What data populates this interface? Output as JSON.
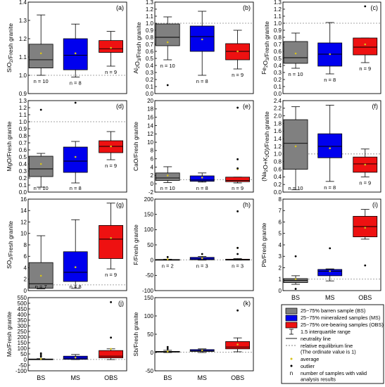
{
  "categories": [
    "BS",
    "MS",
    "OBS"
  ],
  "colors": {
    "BS": "#808080",
    "MS": "#0000ee",
    "OBS": "#ee1111",
    "average": "#d6c21a",
    "refline": "#888888"
  },
  "chart_data": [
    {
      "type": "box",
      "panel": "(a)",
      "ylabel_main": "SiO",
      "ylabel_sub": "2",
      "ylabel_rest": "/Fresh granite",
      "ylim": [
        0.9,
        1.4
      ],
      "yticks": [
        "0.9",
        "1.0",
        "1.1",
        "1.2",
        "1.3",
        "1.4"
      ],
      "ref": 1.0,
      "boxes": [
        {
          "cat": "BS",
          "whisker_low": 1.0,
          "q1": 1.04,
          "median": 1.085,
          "q3": 1.17,
          "whisker_high": 1.33,
          "mean": 1.12,
          "outliers": [],
          "n_label": "n = 10"
        },
        {
          "cat": "MS",
          "whisker_low": 0.99,
          "q1": 1.03,
          "median": 1.11,
          "q3": 1.2,
          "whisker_high": 1.28,
          "mean": 1.12,
          "outliers": [],
          "n_label": "n = 8"
        },
        {
          "cat": "OBS",
          "whisker_low": 1.05,
          "q1": 1.125,
          "median": 1.145,
          "q3": 1.19,
          "whisker_high": 1.24,
          "mean": 1.15,
          "outliers": [],
          "n_label": "n = 9"
        }
      ]
    },
    {
      "type": "box",
      "panel": "(b)",
      "ylabel_main": "Al",
      "ylabel_sub": "2",
      "ylabel_mid": "O",
      "ylabel_sub2": "3",
      "ylabel_rest": "/Fresh granite",
      "ylim": [
        0.0,
        1.3
      ],
      "yticks": [
        "0.0",
        "0.1",
        "0.2",
        "0.3",
        "0.4",
        "0.5",
        "0.6",
        "0.7",
        "0.8",
        "0.9",
        "1.0",
        "1.1",
        "1.2",
        "1.3"
      ],
      "ref": 1.0,
      "boxes": [
        {
          "cat": "BS",
          "whisker_low": 0.48,
          "q1": 0.68,
          "median": 0.8,
          "q3": 0.99,
          "whisker_high": 1.09,
          "mean": 0.73,
          "outliers": [
            0.12
          ],
          "n_label": "n = 10"
        },
        {
          "cat": "MS",
          "whisker_low": 0.26,
          "q1": 0.6,
          "median": 0.81,
          "q3": 0.96,
          "whisker_high": 1.17,
          "mean": 0.77,
          "outliers": [],
          "n_label": "n = 8"
        },
        {
          "cat": "OBS",
          "whisker_low": 0.35,
          "q1": 0.48,
          "median": 0.6,
          "q3": 0.71,
          "whisker_high": 0.9,
          "mean": 0.6,
          "outliers": [],
          "n_label": "n = 9"
        }
      ]
    },
    {
      "type": "box",
      "panel": "(c)",
      "ylabel_main": "Fe",
      "ylabel_sub": "2",
      "ylabel_mid": "O",
      "ylabel_sub2": "3",
      "ylabel_rest": "/Fresh granite",
      "ylim": [
        0.0,
        1.3
      ],
      "yticks": [
        "0.0",
        "0.1",
        "0.2",
        "0.3",
        "0.4",
        "0.5",
        "0.6",
        "0.7",
        "0.8",
        "0.9",
        "1.0",
        "1.1",
        "1.2",
        "1.3"
      ],
      "ref": 1.0,
      "boxes": [
        {
          "cat": "BS",
          "whisker_low": 0.36,
          "q1": 0.43,
          "median": 0.51,
          "q3": 0.74,
          "whisker_high": 0.86,
          "mean": 0.57,
          "outliers": [],
          "n_label": "n = 10"
        },
        {
          "cat": "MS",
          "whisker_low": 0.28,
          "q1": 0.39,
          "median": 0.56,
          "q3": 0.72,
          "whisker_high": 1.01,
          "mean": 0.56,
          "outliers": [],
          "n_label": "n = 8"
        },
        {
          "cat": "OBS",
          "whisker_low": 0.44,
          "q1": 0.55,
          "median": 0.66,
          "q3": 0.79,
          "whisker_high": 0.79,
          "mean": 0.7,
          "outliers": [
            1.24
          ],
          "n_label": "n = 9"
        }
      ]
    },
    {
      "type": "box",
      "panel": "(d)",
      "ylabel_main": "MgO",
      "ylabel_rest": "/Fresh granite",
      "ylim": [
        0.0,
        1.3
      ],
      "yticks": [
        "0.0",
        "0.1",
        "0.2",
        "0.3",
        "0.4",
        "0.5",
        "0.6",
        "0.7",
        "0.8",
        "0.9",
        "1.0",
        "1.1",
        "1.2",
        "1.3"
      ],
      "ref": 1.0,
      "boxes": [
        {
          "cat": "BS",
          "whisker_low": 0.07,
          "q1": 0.22,
          "median": 0.33,
          "q3": 0.51,
          "whisker_high": 0.55,
          "mean": 0.4,
          "outliers": [
            1.17
          ],
          "n_label": "n = 10"
        },
        {
          "cat": "MS",
          "whisker_low": 0.13,
          "q1": 0.28,
          "median": 0.44,
          "q3": 0.64,
          "whisker_high": 0.72,
          "mean": 0.5,
          "outliers": [
            1.27
          ],
          "n_label": "n = 8"
        },
        {
          "cat": "OBS",
          "whisker_low": 0.46,
          "q1": 0.56,
          "median": 0.65,
          "q3": 0.73,
          "whisker_high": 0.86,
          "mean": 0.65,
          "outliers": [],
          "n_label": "n = 9"
        }
      ]
    },
    {
      "type": "box",
      "panel": "(e)",
      "ylabel_main": "CaO",
      "ylabel_rest": "/Fresh granite",
      "ylim": [
        -2,
        20
      ],
      "yticks": [
        "-2",
        "0",
        "2",
        "4",
        "6",
        "8",
        "10",
        "12",
        "14",
        "16",
        "18",
        "20"
      ],
      "ref": 1.0,
      "boxes": [
        {
          "cat": "BS",
          "whisker_low": 0.3,
          "q1": 0.8,
          "median": 1.4,
          "q3": 2.6,
          "whisker_high": 4.1,
          "mean": 2.0,
          "outliers": [],
          "n_label": "n = 10"
        },
        {
          "cat": "MS",
          "whisker_low": 0.4,
          "q1": 0.6,
          "median": 0.9,
          "q3": 1.9,
          "whisker_high": 2.6,
          "mean": 1.5,
          "outliers": [],
          "n_label": "n = 8"
        },
        {
          "cat": "OBS",
          "whisker_low": 0.2,
          "q1": 0.5,
          "median": 0.8,
          "q3": 1.6,
          "whisker_high": 1.6,
          "mean": 3.5,
          "outliers": [
            18.3,
            5.9,
            3.7
          ],
          "n_label": "n = 9"
        }
      ]
    },
    {
      "type": "box",
      "panel": "(f)",
      "ylabel_main": "(Na",
      "ylabel_sub": "2",
      "ylabel_mid": "O+K",
      "ylabel_sub2": "2",
      "ylabel_rest": "O)/Fresh granite",
      "ylim": [
        0.0,
        2.4
      ],
      "yticks": [
        "0.0",
        "0.2",
        "0.4",
        "0.6",
        "0.8",
        "1.0",
        "1.2",
        "1.4",
        "1.6",
        "1.8",
        "2.0",
        "2.2",
        "2.4"
      ],
      "ref": 1.0,
      "boxes": [
        {
          "cat": "BS",
          "whisker_low": 0.06,
          "q1": 0.6,
          "median": 1.28,
          "q3": 1.9,
          "whisker_high": 2.24,
          "mean": 1.2,
          "outliers": [],
          "n_label": "n = 10"
        },
        {
          "cat": "MS",
          "whisker_low": 0.28,
          "q1": 0.9,
          "median": 1.2,
          "q3": 1.53,
          "whisker_high": 2.28,
          "mean": 1.15,
          "outliers": [],
          "n_label": "n = 8"
        },
        {
          "cat": "OBS",
          "whisker_low": 0.4,
          "q1": 0.52,
          "median": 0.74,
          "q3": 0.92,
          "whisker_high": 1.13,
          "mean": 0.72,
          "outliers": [],
          "n_label": "n = 9"
        }
      ]
    },
    {
      "type": "box",
      "panel": "(g)",
      "ylabel_main": "SO",
      "ylabel_sub": "3",
      "ylabel_rest": "/Fresh granite",
      "ylim": [
        0,
        16
      ],
      "yticks": [
        "0",
        "2",
        "4",
        "6",
        "8",
        "10",
        "12",
        "14",
        "16"
      ],
      "ref": 1.0,
      "boxes": [
        {
          "cat": "BS",
          "whisker_low": 0.3,
          "q1": 0.4,
          "median": 1.2,
          "q3": 4.9,
          "whisker_high": 9.6,
          "mean": 2.6,
          "outliers": [],
          "n_label": "n = 7"
        },
        {
          "cat": "MS",
          "whisker_low": 0.4,
          "q1": 1.6,
          "median": 3.2,
          "q3": 6.8,
          "whisker_high": 12.4,
          "mean": 4.1,
          "outliers": [],
          "n_label": "n = 8"
        },
        {
          "cat": "OBS",
          "whisker_low": 3.8,
          "q1": 5.6,
          "median": 9.0,
          "q3": 11.4,
          "whisker_high": 15.3,
          "mean": 9.2,
          "outliers": [],
          "n_label": "n = 9"
        }
      ]
    },
    {
      "type": "box",
      "panel": "(h)",
      "ylabel_main": "F",
      "ylabel_rest": "/Fresh granite",
      "ylim": [
        -100,
        200
      ],
      "yticks": [
        "-100",
        "-50",
        "0",
        "50",
        "100",
        "150",
        "200"
      ],
      "ref": 1.0,
      "boxes": [
        {
          "cat": "BS",
          "whisker_low": 0,
          "q1": 0,
          "median": 1,
          "q3": 2,
          "whisker_high": 3,
          "mean": 3,
          "outliers": [
            10
          ],
          "n_label": "n = 2"
        },
        {
          "cat": "MS",
          "whisker_low": 0,
          "q1": 1,
          "median": 4,
          "q3": 9,
          "whisker_high": 12,
          "mean": 6,
          "outliers": [
            20
          ],
          "n_label": "n = 3"
        },
        {
          "cat": "OBS",
          "whisker_low": 0,
          "q1": 0,
          "median": 1,
          "q3": 3,
          "whisker_high": 5,
          "mean": 40,
          "outliers": [
            160,
            40,
            20
          ],
          "n_label": "n = 3"
        }
      ]
    },
    {
      "type": "box",
      "panel": "(i)",
      "ylabel_main": "Pb",
      "ylabel_rest": "/Fresh granite",
      "ylim": [
        0,
        8
      ],
      "yticks": [
        "0",
        "1",
        "2",
        "3",
        "4",
        "5",
        "6",
        "7",
        "8"
      ],
      "ref": 1.0,
      "boxes": [
        {
          "cat": "BS",
          "whisker_low": 0.55,
          "q1": 0.7,
          "median": 0.9,
          "q3": 1.05,
          "whisker_high": 1.3,
          "mean": 1.0,
          "outliers": [
            3.0,
            0.15
          ],
          "n_label": ""
        },
        {
          "cat": "MS",
          "whisker_low": 0.85,
          "q1": 1.3,
          "median": 1.7,
          "q3": 1.85,
          "whisker_high": 1.9,
          "mean": 1.7,
          "outliers": [
            3.7
          ],
          "n_label": ""
        },
        {
          "cat": "OBS",
          "whisker_low": 4.5,
          "q1": 4.7,
          "median": 5.6,
          "q3": 6.5,
          "whisker_high": 7.1,
          "mean": 5.5,
          "outliers": [
            2.2
          ],
          "n_label": ""
        }
      ]
    },
    {
      "type": "box",
      "panel": "(j)",
      "ylabel_main": "Mo",
      "ylabel_rest": "/Fresh granite",
      "ylim": [
        -100,
        550
      ],
      "yticks": [
        "-100",
        "-50",
        "0",
        "50",
        "100",
        "150",
        "200",
        "250",
        "300",
        "350",
        "400",
        "450",
        "500",
        "550"
      ],
      "ref": 1.0,
      "boxes": [
        {
          "cat": "BS",
          "whisker_low": 0,
          "q1": 1,
          "median": 2,
          "q3": 5,
          "whisker_high": 8,
          "mean": 6,
          "outliers": [
            40,
            55,
            25
          ],
          "n_label": ""
        },
        {
          "cat": "MS",
          "whisker_low": 0,
          "q1": 2,
          "median": 12,
          "q3": 30,
          "whisker_high": 45,
          "mean": 18,
          "outliers": [],
          "n_label": ""
        },
        {
          "cat": "OBS",
          "whisker_low": 0,
          "q1": 15,
          "median": 30,
          "q3": 80,
          "whisker_high": 95,
          "mean": 95,
          "outliers": [
            510,
            195
          ],
          "n_label": ""
        }
      ]
    },
    {
      "type": "box",
      "panel": "(k)",
      "ylabel_main": "Sb",
      "ylabel_rest": "/Fresh granite",
      "ylim": [
        -50,
        150
      ],
      "yticks": [
        "-50",
        "0",
        "50",
        "100",
        "150"
      ],
      "ref": 1.0,
      "boxes": [
        {
          "cat": "BS",
          "whisker_low": 0,
          "q1": 1,
          "median": 2,
          "q3": 3,
          "whisker_high": 6,
          "mean": 3,
          "outliers": [
            15,
            10
          ],
          "n_label": ""
        },
        {
          "cat": "MS",
          "whisker_low": 0,
          "q1": 3,
          "median": 5,
          "q3": 8,
          "whisker_high": 10,
          "mean": 6,
          "outliers": [],
          "n_label": ""
        },
        {
          "cat": "OBS",
          "whisker_low": 2,
          "q1": 10,
          "median": 15,
          "q3": 30,
          "whisker_high": 40,
          "mean": 22,
          "outliers": [
            115
          ],
          "n_label": ""
        }
      ]
    }
  ],
  "legend": {
    "items": [
      {
        "kind": "box",
        "color": "#808080",
        "label": "25~75% barren sample (BS)"
      },
      {
        "kind": "box",
        "color": "#0000ee",
        "label": "25~75% mineralized samples (MS)"
      },
      {
        "kind": "box",
        "color": "#ee1111",
        "label": "25~75% ore-bearing samples (OBS)"
      },
      {
        "kind": "whisker",
        "label": "1.5 interquartile range"
      },
      {
        "kind": "line",
        "label": "neutrality line"
      },
      {
        "kind": "dashed",
        "label": "relative equilibrium line"
      },
      {
        "kind": "note",
        "label": "(The ordinate value is 1)"
      },
      {
        "kind": "avg",
        "label": "average"
      },
      {
        "kind": "dot",
        "label": "outlier"
      },
      {
        "kind": "n",
        "symbol": "n",
        "label": "number of samples with valid"
      },
      {
        "kind": "note",
        "label": "analysis results"
      }
    ]
  }
}
